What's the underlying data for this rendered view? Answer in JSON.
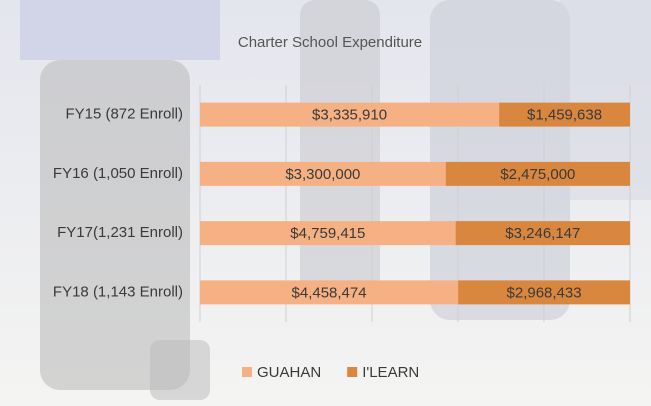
{
  "chart_data": {
    "type": "bar",
    "orientation": "horizontal",
    "stacked": "percent",
    "title": "Charter School Expenditure",
    "categories": [
      "FY15 (872 Enroll)",
      "FY16 (1,050 Enroll)",
      "FY17(1,231 Enroll)",
      "FY18 (1,143 Enroll)"
    ],
    "series": [
      {
        "name": "GUAHAN",
        "color": "#f5b184",
        "values": [
          3335910,
          3300000,
          4759415,
          4458474
        ],
        "value_labels": [
          "$3,335,910",
          "$3,300,000",
          "$4,759,415",
          "$4,458,474"
        ]
      },
      {
        "name": "I'LEARN",
        "color": "#d9873f",
        "values": [
          1459638,
          2475000,
          3246147,
          2968433
        ],
        "value_labels": [
          "$1,459,638",
          "$2,475,000",
          "$3,246,147",
          "$2,968,433"
        ]
      }
    ],
    "xlim": [
      0,
      100
    ],
    "xticks": [
      0,
      20,
      40,
      60,
      80,
      100
    ],
    "grid": true,
    "legend": "bottom"
  }
}
